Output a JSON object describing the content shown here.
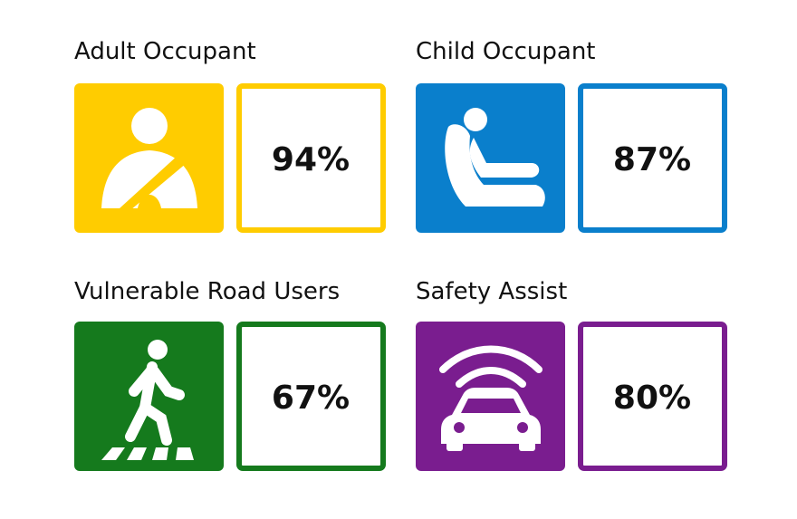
{
  "sections": [
    {
      "title": "Adult Occupant",
      "score": "94%"
    },
    {
      "title": "Child Occupant",
      "score": "87%"
    },
    {
      "title": "Vulnerable Road Users",
      "score": "67%"
    },
    {
      "title": "Safety Assist",
      "score": "80%"
    }
  ]
}
